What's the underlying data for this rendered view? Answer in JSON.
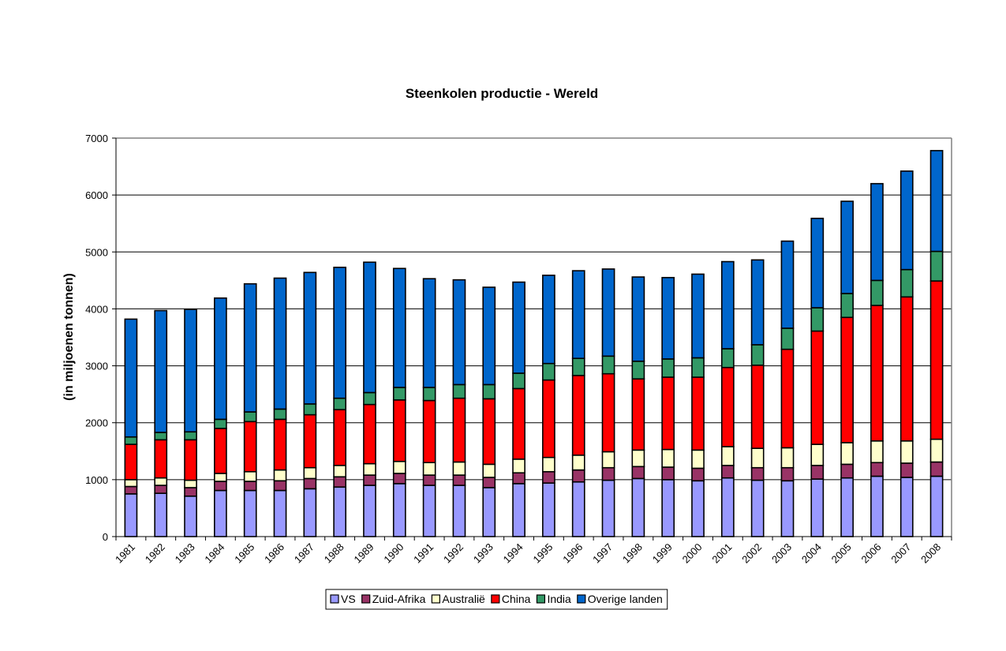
{
  "chart_data": {
    "type": "bar",
    "stacked": true,
    "title": "Steenkolen productie - Wereld",
    "xlabel": "",
    "ylabel": "(in miljoenen tonnen)",
    "ylim": [
      0,
      7000
    ],
    "yticks": [
      0,
      1000,
      2000,
      3000,
      4000,
      5000,
      6000,
      7000
    ],
    "grid": true,
    "legend_position": "bottom",
    "categories": [
      "1981",
      "1982",
      "1983",
      "1984",
      "1985",
      "1986",
      "1987",
      "1988",
      "1989",
      "1990",
      "1991",
      "1992",
      "1993",
      "1994",
      "1995",
      "1996",
      "1997",
      "1998",
      "1999",
      "2000",
      "2001",
      "2002",
      "2003",
      "2004",
      "2005",
      "2006",
      "2007",
      "2008"
    ],
    "series": [
      {
        "name": "VS",
        "color": "#9999FF",
        "values": [
          750,
          760,
          710,
          810,
          810,
          810,
          840,
          870,
          900,
          930,
          900,
          900,
          860,
          930,
          940,
          960,
          990,
          1020,
          1000,
          980,
          1030,
          990,
          980,
          1010,
          1030,
          1060,
          1040,
          1060
        ]
      },
      {
        "name": "Zuid-Afrika",
        "color": "#993366",
        "values": [
          130,
          140,
          150,
          160,
          160,
          170,
          180,
          180,
          180,
          180,
          180,
          180,
          180,
          190,
          200,
          210,
          220,
          210,
          220,
          220,
          220,
          220,
          230,
          240,
          240,
          240,
          250,
          250
        ]
      },
      {
        "name": "Australië",
        "color": "#FFFFCC",
        "values": [
          120,
          130,
          130,
          140,
          170,
          190,
          190,
          200,
          200,
          210,
          220,
          230,
          230,
          240,
          250,
          260,
          280,
          290,
          310,
          320,
          330,
          340,
          350,
          370,
          380,
          380,
          390,
          400
        ]
      },
      {
        "name": "China",
        "color": "#FF0000",
        "values": [
          620,
          670,
          710,
          790,
          880,
          890,
          930,
          980,
          1040,
          1080,
          1090,
          1120,
          1150,
          1240,
          1360,
          1400,
          1370,
          1250,
          1270,
          1280,
          1390,
          1460,
          1730,
          1990,
          2200,
          2380,
          2530,
          2780
        ]
      },
      {
        "name": "India",
        "color": "#339966",
        "values": [
          130,
          130,
          140,
          160,
          170,
          180,
          190,
          200,
          210,
          220,
          230,
          240,
          250,
          270,
          290,
          300,
          310,
          310,
          320,
          340,
          330,
          360,
          370,
          410,
          420,
          440,
          480,
          520
        ]
      },
      {
        "name": "Overige landen",
        "color": "#0066CC",
        "values": [
          2070,
          2140,
          2150,
          2130,
          2250,
          2300,
          2310,
          2300,
          2290,
          2090,
          1910,
          1840,
          1710,
          1600,
          1550,
          1540,
          1530,
          1480,
          1430,
          1470,
          1530,
          1490,
          1530,
          1570,
          1620,
          1700,
          1730,
          1770
        ]
      }
    ]
  }
}
